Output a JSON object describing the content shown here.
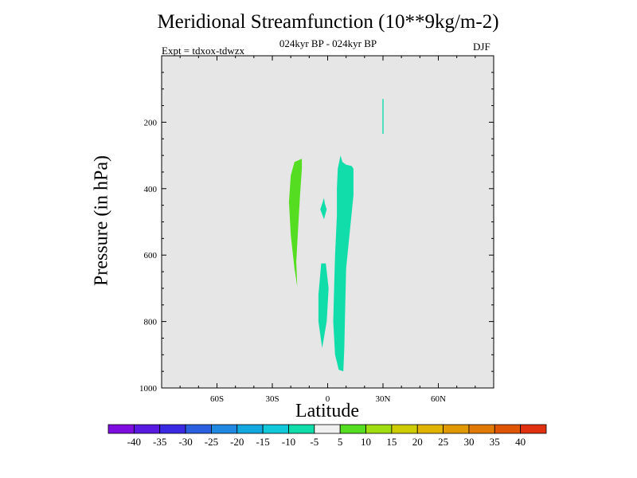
{
  "chart_data": {
    "type": "heatmap",
    "title": "Meridional Streamfunction (10**9kg/m-2)",
    "subtitle": "024kyr BP - 024kyr BP",
    "expt_label": "Expt = tdxox-tdwzx",
    "season": "DJF",
    "xlabel": "Latitude",
    "ylabel": "Pressure (in hPa)",
    "xlim": [
      -90,
      90
    ],
    "ylim": [
      1000,
      0
    ],
    "x_ticks": [
      {
        "value": -60,
        "label": "60S"
      },
      {
        "value": -30,
        "label": "30S"
      },
      {
        "value": 0,
        "label": "0"
      },
      {
        "value": 30,
        "label": "30N"
      },
      {
        "value": 60,
        "label": "60N"
      }
    ],
    "y_ticks": [
      {
        "value": 200,
        "label": "200"
      },
      {
        "value": 400,
        "label": "400"
      },
      {
        "value": 600,
        "label": "600"
      },
      {
        "value": 800,
        "label": "800"
      },
      {
        "value": 1000,
        "label": "1000"
      }
    ],
    "background_color": "#e6e6e6",
    "regions": [
      {
        "level": "5 to 10",
        "color": "#55dd22",
        "points": [
          [
            -16,
            315
          ],
          [
            -14,
            310
          ],
          [
            -14,
            340
          ],
          [
            -15,
            420
          ],
          [
            -16,
            520
          ],
          [
            -17,
            620
          ],
          [
            -16.5,
            695
          ],
          [
            -18,
            640
          ],
          [
            -20,
            540
          ],
          [
            -21,
            440
          ],
          [
            -20,
            360
          ],
          [
            -18,
            320
          ]
        ]
      },
      {
        "level": "-10 to -5",
        "color": "#11ddaa",
        "points": [
          [
            -3,
            445
          ],
          [
            -2,
            428
          ],
          [
            -1.5,
            445
          ],
          [
            -0.5,
            462
          ],
          [
            -2,
            492
          ],
          [
            -4,
            462
          ]
        ]
      },
      {
        "level": "-10 to -5",
        "color": "#11ddaa",
        "points": [
          [
            -3.5,
            625
          ],
          [
            -1,
            625
          ],
          [
            0.5,
            700
          ],
          [
            -0.5,
            800
          ],
          [
            -3,
            880
          ],
          [
            -5,
            800
          ],
          [
            -5,
            720
          ]
        ]
      },
      {
        "level": "-10 to -5",
        "color": "#11ddaa",
        "points": [
          [
            7,
            300
          ],
          [
            8,
            320
          ],
          [
            10,
            328
          ],
          [
            13,
            332
          ],
          [
            14,
            340
          ],
          [
            14,
            420
          ],
          [
            12,
            530
          ],
          [
            10,
            640
          ],
          [
            9.5,
            760
          ],
          [
            9,
            880
          ],
          [
            8.5,
            950
          ],
          [
            6,
            945
          ],
          [
            4,
            900
          ],
          [
            3,
            800
          ],
          [
            3.5,
            700
          ],
          [
            4,
            600
          ],
          [
            5,
            480
          ],
          [
            5,
            400
          ],
          [
            5.5,
            340
          ]
        ]
      },
      {
        "level": "-10 to -5",
        "color": "#11ddaa",
        "points": [
          [
            29.7,
            130
          ],
          [
            30.3,
            130
          ],
          [
            30.3,
            235
          ],
          [
            29.7,
            235
          ]
        ]
      }
    ],
    "colorbar": {
      "colors": [
        "#7e0ee0",
        "#5a19e0",
        "#3b2ae3",
        "#2a5fe0",
        "#1f88e0",
        "#11a8e0",
        "#11c8d8",
        "#11ddaa",
        "#f0f0f0",
        "#55dd22",
        "#a0dd11",
        "#cccc00",
        "#e0b400",
        "#e09a00",
        "#e07a00",
        "#e05500",
        "#e03010"
      ],
      "labels": [
        "-40",
        "-35",
        "-30",
        "-25",
        "-20",
        "-15",
        "-10",
        "-5",
        "5",
        "10",
        "15",
        "20",
        "25",
        "30",
        "35",
        "40"
      ]
    }
  }
}
